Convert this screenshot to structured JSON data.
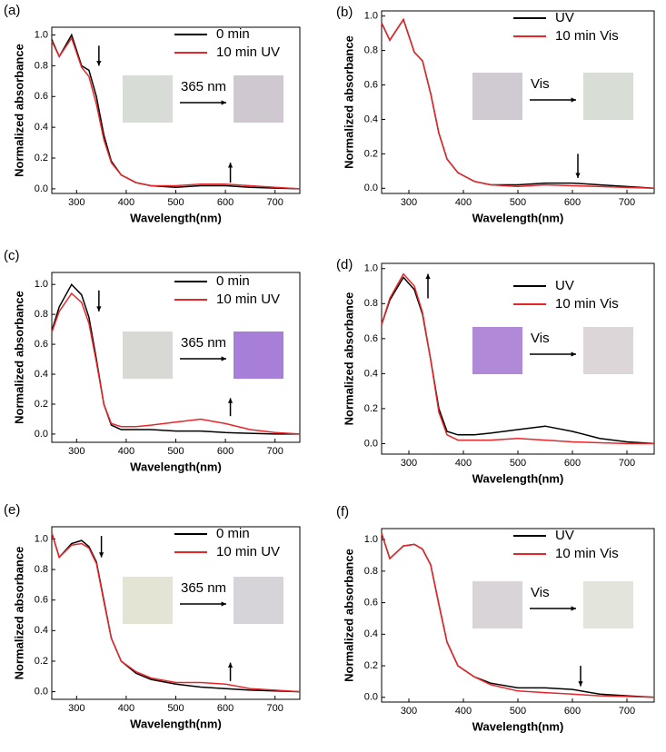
{
  "chart_data": [
    {
      "type": "line",
      "label": "(a)",
      "annotation": "365 nm",
      "xlabel": "Wavelength(nm)",
      "ylabel": "Normalized absorbance",
      "x": [
        250,
        265,
        290,
        310,
        325,
        340,
        355,
        370,
        390,
        420,
        450,
        500,
        550,
        600,
        650,
        700,
        750
      ],
      "series": [
        {
          "name": "0 min",
          "color": "#000000",
          "values": [
            0.97,
            0.86,
            1.0,
            0.8,
            0.77,
            0.6,
            0.35,
            0.18,
            0.09,
            0.04,
            0.02,
            0.01,
            0.02,
            0.02,
            0.01,
            0.005,
            0
          ]
        },
        {
          "name": "10 min UV",
          "color": "#e8262a",
          "values": [
            0.96,
            0.86,
            0.98,
            0.79,
            0.73,
            0.55,
            0.32,
            0.17,
            0.09,
            0.04,
            0.02,
            0.02,
            0.03,
            0.03,
            0.02,
            0.01,
            0
          ]
        }
      ],
      "xlim": [
        250,
        750
      ],
      "xticks": [
        300,
        400,
        500,
        600,
        700
      ],
      "ylim": [
        -0.03,
        1.05
      ],
      "yticks": [
        {
          "value": 0,
          "label": "0.0"
        },
        0.2,
        0.4,
        0.6,
        0.8,
        {
          "value": 1,
          "label": "1.0"
        }
      ]
    },
    {
      "type": "line",
      "label": "(b)",
      "annotation": "Vis",
      "xlabel": "Wavelength(nm)",
      "ylabel": "Normalized absorbance",
      "x": [
        250,
        265,
        290,
        310,
        325,
        340,
        355,
        370,
        390,
        420,
        450,
        500,
        550,
        600,
        650,
        700,
        750
      ],
      "series": [
        {
          "name": "UV",
          "color": "#000000",
          "values": [
            0.96,
            0.86,
            0.98,
            0.79,
            0.74,
            0.55,
            0.32,
            0.17,
            0.09,
            0.04,
            0.02,
            0.02,
            0.03,
            0.03,
            0.02,
            0.01,
            0
          ]
        },
        {
          "name": "10 min Vis",
          "color": "#e8262a",
          "values": [
            0.96,
            0.86,
            0.98,
            0.79,
            0.74,
            0.55,
            0.32,
            0.17,
            0.09,
            0.04,
            0.02,
            0.01,
            0.02,
            0.015,
            0.01,
            0.005,
            0
          ]
        }
      ],
      "xlim": [
        250,
        750
      ],
      "xticks": [
        300,
        400,
        500,
        600,
        700
      ],
      "ylim": [
        -0.03,
        1.03
      ],
      "yticks": [
        {
          "value": 0,
          "label": "0.0"
        },
        0.2,
        0.4,
        0.6,
        0.8,
        {
          "value": 1,
          "label": "1.0"
        }
      ]
    },
    {
      "type": "line",
      "label": "(c)",
      "annotation": "365 nm",
      "xlabel": "Wavelength(nm)",
      "ylabel": "Normalized absorbance",
      "x": [
        250,
        265,
        290,
        310,
        325,
        340,
        355,
        370,
        390,
        420,
        450,
        500,
        550,
        600,
        650,
        700,
        750
      ],
      "series": [
        {
          "name": "0 min",
          "color": "#000000",
          "values": [
            0.69,
            0.85,
            1.0,
            0.93,
            0.78,
            0.5,
            0.2,
            0.06,
            0.03,
            0.03,
            0.03,
            0.02,
            0.02,
            0.01,
            0.005,
            0,
            0
          ]
        },
        {
          "name": "10 min UV",
          "color": "#e8262a",
          "values": [
            0.68,
            0.82,
            0.94,
            0.88,
            0.74,
            0.48,
            0.2,
            0.07,
            0.05,
            0.05,
            0.06,
            0.08,
            0.1,
            0.07,
            0.03,
            0.01,
            0
          ]
        }
      ],
      "xlim": [
        250,
        750
      ],
      "xticks": [
        300,
        400,
        500,
        600,
        700
      ],
      "ylim": [
        -0.055,
        1.08
      ],
      "yticks": [
        {
          "value": 0,
          "label": "0.0"
        },
        0.2,
        0.4,
        0.6,
        0.8,
        {
          "value": 1,
          "label": "1.0"
        }
      ]
    },
    {
      "type": "line",
      "label": "(d)",
      "annotation": "Vis",
      "xlabel": "Wavelength(nm)",
      "ylabel": "Normalized absorbance",
      "x": [
        250,
        265,
        290,
        310,
        325,
        340,
        355,
        370,
        390,
        420,
        450,
        500,
        550,
        600,
        650,
        700,
        750
      ],
      "series": [
        {
          "name": "UV",
          "color": "#000000",
          "values": [
            0.68,
            0.82,
            0.95,
            0.88,
            0.74,
            0.48,
            0.2,
            0.07,
            0.05,
            0.05,
            0.06,
            0.08,
            0.1,
            0.07,
            0.03,
            0.01,
            0
          ]
        },
        {
          "name": "10 min Vis",
          "color": "#e8262a",
          "values": [
            0.68,
            0.83,
            0.97,
            0.9,
            0.75,
            0.48,
            0.18,
            0.05,
            0.02,
            0.02,
            0.02,
            0.03,
            0.02,
            0.01,
            0.005,
            0,
            0
          ]
        }
      ],
      "xlim": [
        250,
        750
      ],
      "xticks": [
        300,
        400,
        500,
        600,
        700
      ],
      "ylim": [
        -0.06,
        1.03
      ],
      "yticks": [
        {
          "value": 0,
          "label": "0.0"
        },
        0.2,
        0.4,
        0.6,
        0.8,
        {
          "value": 1,
          "label": "1.0"
        }
      ]
    },
    {
      "type": "line",
      "label": "(e)",
      "annotation": "365 nm",
      "xlabel": "Wavelength(nm)",
      "ylabel": "Normalized absorbance",
      "x": [
        250,
        265,
        290,
        310,
        325,
        340,
        355,
        370,
        390,
        420,
        450,
        500,
        550,
        600,
        650,
        700,
        750
      ],
      "series": [
        {
          "name": "0 min",
          "color": "#000000",
          "values": [
            1.04,
            0.88,
            0.97,
            0.99,
            0.95,
            0.85,
            0.6,
            0.35,
            0.2,
            0.12,
            0.08,
            0.05,
            0.03,
            0.02,
            0.01,
            0.005,
            0
          ]
        },
        {
          "name": "10 min UV",
          "color": "#e8262a",
          "values": [
            1.04,
            0.88,
            0.96,
            0.97,
            0.94,
            0.84,
            0.59,
            0.35,
            0.2,
            0.13,
            0.09,
            0.06,
            0.06,
            0.05,
            0.02,
            0.01,
            0
          ]
        }
      ],
      "xlim": [
        250,
        750
      ],
      "xticks": [
        300,
        400,
        500,
        600,
        700
      ],
      "ylim": [
        -0.05,
        1.08
      ],
      "yticks": [
        {
          "value": 0,
          "label": "0.0"
        },
        0.2,
        0.4,
        0.6,
        0.8,
        {
          "value": 1,
          "label": "1.0"
        }
      ]
    },
    {
      "type": "line",
      "label": "(f)",
      "annotation": "Vis",
      "xlabel": "Wavelength(nm)",
      "ylabel": "Normalized absorbance",
      "x": [
        250,
        265,
        290,
        310,
        325,
        340,
        355,
        370,
        390,
        420,
        450,
        500,
        550,
        600,
        650,
        700,
        750
      ],
      "series": [
        {
          "name": "UV",
          "color": "#000000",
          "values": [
            1.04,
            0.88,
            0.96,
            0.97,
            0.94,
            0.84,
            0.59,
            0.35,
            0.2,
            0.13,
            0.09,
            0.06,
            0.06,
            0.05,
            0.02,
            0.01,
            0
          ]
        },
        {
          "name": "10 min Vis",
          "color": "#e8262a",
          "values": [
            1.04,
            0.88,
            0.96,
            0.97,
            0.94,
            0.84,
            0.59,
            0.35,
            0.2,
            0.13,
            0.08,
            0.04,
            0.03,
            0.02,
            0.01,
            0.005,
            0
          ]
        }
      ],
      "xlim": [
        250,
        750
      ],
      "xticks": [
        300,
        400,
        500,
        600,
        700
      ],
      "ylim": [
        -0.03,
        1.07
      ],
      "yticks": [
        {
          "value": 0,
          "label": "0.0"
        },
        0.2,
        0.4,
        0.6,
        0.8,
        {
          "value": 1,
          "label": "1.0"
        }
      ]
    }
  ]
}
